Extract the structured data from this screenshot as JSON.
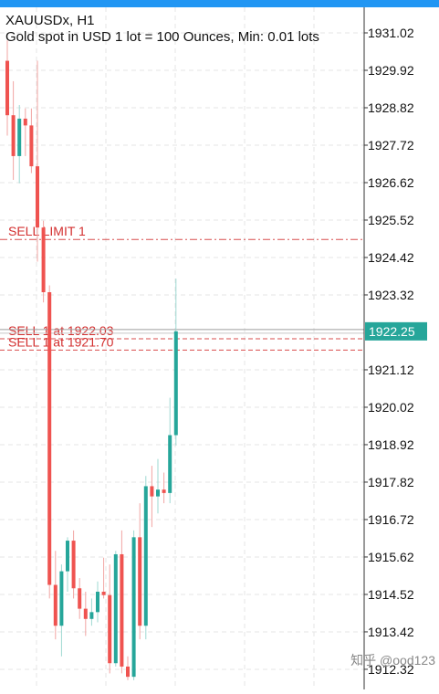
{
  "header": {
    "symbol_line": "XAUUSDx, H1",
    "description": "Gold spot in USD 1 lot = 100 Ounces, Min: 0.01 lots"
  },
  "watermark": "知乎 @ood123",
  "colors": {
    "bull": "#26a69a",
    "bear": "#ef5350",
    "order": "#d32f2f",
    "grid": "#e6e6e6",
    "price_tag": "#26a69a"
  },
  "price_axis": {
    "ticks": [
      "1931.02",
      "1929.92",
      "1928.82",
      "1927.72",
      "1926.62",
      "1925.52",
      "1924.42",
      "1923.32",
      "1921.12",
      "1920.02",
      "1918.92",
      "1917.82",
      "1916.72",
      "1915.62",
      "1914.52",
      "1913.42",
      "1912.32"
    ],
    "current_price": "1922.25"
  },
  "orders": [
    {
      "label": "SELL LIMIT 1",
      "price": 1924.95,
      "style": "dashdot"
    },
    {
      "label": "SELL 1 at 1922.03",
      "price": 1922.03,
      "style": "dash"
    },
    {
      "label": "SELL 1 at 1921.70",
      "price": 1921.7,
      "style": "dash"
    }
  ],
  "chart_data": {
    "type": "candlestick",
    "symbol": "XAUUSDx",
    "timeframe": "H1",
    "ylim": [
      1912.0,
      1931.5
    ],
    "current_price": 1922.25,
    "candles": [
      {
        "o": 1930.2,
        "h": 1930.8,
        "l": 1928.0,
        "c": 1928.6
      },
      {
        "o": 1928.6,
        "h": 1929.6,
        "l": 1926.7,
        "c": 1927.4
      },
      {
        "o": 1927.4,
        "h": 1928.9,
        "l": 1926.6,
        "c": 1928.5
      },
      {
        "o": 1928.5,
        "h": 1928.8,
        "l": 1927.4,
        "c": 1928.3
      },
      {
        "o": 1928.3,
        "h": 1928.8,
        "l": 1926.9,
        "c": 1927.1
      },
      {
        "o": 1927.1,
        "h": 1930.2,
        "l": 1924.3,
        "c": 1925.3
      },
      {
        "o": 1925.3,
        "h": 1925.5,
        "l": 1923.1,
        "c": 1923.4
      },
      {
        "o": 1923.4,
        "h": 1923.6,
        "l": 1914.4,
        "c": 1914.8
      },
      {
        "o": 1914.8,
        "h": 1915.8,
        "l": 1913.2,
        "c": 1913.6
      },
      {
        "o": 1913.6,
        "h": 1915.4,
        "l": 1912.7,
        "c": 1915.2
      },
      {
        "o": 1915.2,
        "h": 1916.2,
        "l": 1914.6,
        "c": 1916.1
      },
      {
        "o": 1916.1,
        "h": 1916.4,
        "l": 1914.4,
        "c": 1914.7
      },
      {
        "o": 1914.7,
        "h": 1915.0,
        "l": 1913.8,
        "c": 1914.1
      },
      {
        "o": 1914.1,
        "h": 1914.6,
        "l": 1913.3,
        "c": 1913.8
      },
      {
        "o": 1913.8,
        "h": 1914.4,
        "l": 1913.6,
        "c": 1914.0
      },
      {
        "o": 1914.0,
        "h": 1914.9,
        "l": 1913.7,
        "c": 1914.6
      },
      {
        "o": 1914.6,
        "h": 1915.6,
        "l": 1914.4,
        "c": 1914.5
      },
      {
        "o": 1914.5,
        "h": 1915.4,
        "l": 1912.2,
        "c": 1912.5
      },
      {
        "o": 1912.5,
        "h": 1915.8,
        "l": 1912.4,
        "c": 1915.7
      },
      {
        "o": 1915.7,
        "h": 1916.4,
        "l": 1912.2,
        "c": 1912.4
      },
      {
        "o": 1912.4,
        "h": 1912.7,
        "l": 1912.0,
        "c": 1912.1
      },
      {
        "o": 1912.1,
        "h": 1916.4,
        "l": 1912.0,
        "c": 1916.2
      },
      {
        "o": 1916.2,
        "h": 1917.2,
        "l": 1913.2,
        "c": 1913.6
      },
      {
        "o": 1913.6,
        "h": 1918.0,
        "l": 1913.2,
        "c": 1917.7
      },
      {
        "o": 1917.7,
        "h": 1918.3,
        "l": 1916.5,
        "c": 1917.4
      },
      {
        "o": 1917.4,
        "h": 1918.5,
        "l": 1916.9,
        "c": 1917.6
      },
      {
        "o": 1917.6,
        "h": 1918.1,
        "l": 1917.2,
        "c": 1917.5
      },
      {
        "o": 1917.5,
        "h": 1920.3,
        "l": 1917.2,
        "c": 1919.2
      },
      {
        "o": 1919.2,
        "h": 1923.8,
        "l": 1918.9,
        "c": 1922.25
      }
    ]
  }
}
